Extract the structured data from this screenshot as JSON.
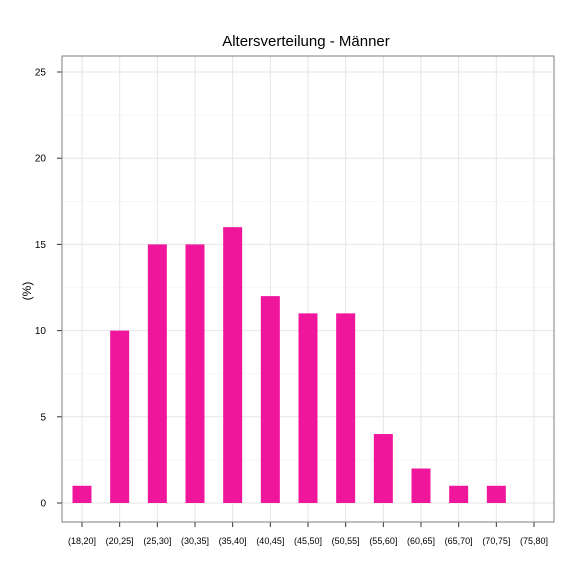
{
  "chart_data": {
    "type": "bar",
    "title": "Altersverteilung - Männer",
    "xlabel": "",
    "ylabel": "(%)",
    "categories": [
      "(18,20]",
      "(20,25]",
      "(25,30]",
      "(30,35]",
      "(35,40]",
      "(40,45]",
      "(45,50]",
      "(50,55]",
      "(55,60]",
      "(60,65]",
      "(65,70]",
      "(70,75]",
      "(75,80]"
    ],
    "values": [
      1,
      10,
      15,
      15,
      16,
      12,
      11,
      11,
      4,
      2,
      1,
      1,
      0
    ],
    "ylim": [
      0,
      25
    ],
    "yticks": [
      0,
      5,
      10,
      15,
      20,
      25
    ],
    "grid": true,
    "bar_color": "#f0169c",
    "grid_color": "#e6e6e6",
    "panel_border_color": "#7f7f7f"
  }
}
